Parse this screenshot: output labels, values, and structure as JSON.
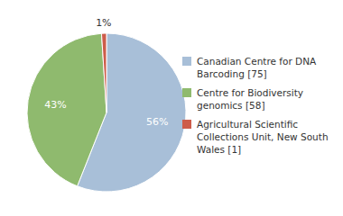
{
  "chart_data": {
    "type": "pie",
    "categories": [
      "Canadian Centre for DNA\nBarcoding [75]",
      "Centre for Biodiversity\ngenomics [58]",
      "Agricultural Scientific\nCollections Unit, New South\nWales [1]"
    ],
    "values": [
      56,
      43,
      1
    ],
    "value_labels": [
      "56%",
      "43%",
      "1%"
    ],
    "colors": [
      "#a8bfd8",
      "#8fba6e",
      "#cd5c4a"
    ],
    "data_labels": true,
    "legend": "right"
  }
}
